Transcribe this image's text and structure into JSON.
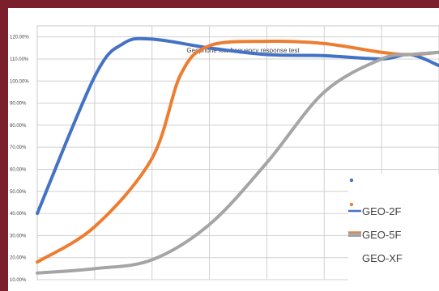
{
  "chart_data": {
    "type": "line",
    "title": "Geophone low frequency response test",
    "xlabel": "",
    "ylabel": "",
    "ylim": [
      10,
      125
    ],
    "y_ticks": [
      "120.00%",
      "110.00%",
      "100.00%",
      "90.00%",
      "80.00%",
      "70.00%",
      "60.00%",
      "50.00%",
      "40.00%",
      "30.00%",
      "20.00%",
      "10.00%"
    ],
    "y_tick_values": [
      120,
      110,
      100,
      90,
      80,
      70,
      60,
      50,
      40,
      30,
      20,
      10
    ],
    "x_categories": 7,
    "xlim": [
      0,
      7
    ],
    "grid": true,
    "legend_position": "bottom-right",
    "series": [
      {
        "name": "GEO-2F",
        "color": "#4472C4",
        "x": [
          0,
          1,
          1.5,
          2,
          3,
          4,
          5,
          6,
          6.5,
          7
        ],
        "y": [
          40,
          102,
          117,
          119,
          115,
          112,
          111.5,
          110,
          112,
          107
        ]
      },
      {
        "name": "GEO-5F",
        "color": "#ED7D31",
        "x": [
          0,
          1,
          2,
          2.5,
          3,
          4,
          5,
          6,
          6.5,
          7
        ],
        "y": [
          18,
          34,
          65,
          103,
          116,
          118,
          117,
          113,
          112,
          113
        ]
      },
      {
        "name": "GEO-XF",
        "color": "#A5A5A5",
        "x": [
          0,
          1,
          2,
          3,
          4,
          5,
          6,
          6.5,
          7
        ],
        "y": [
          13,
          15,
          19,
          35,
          63,
          95,
          110,
          112,
          113
        ]
      }
    ]
  }
}
